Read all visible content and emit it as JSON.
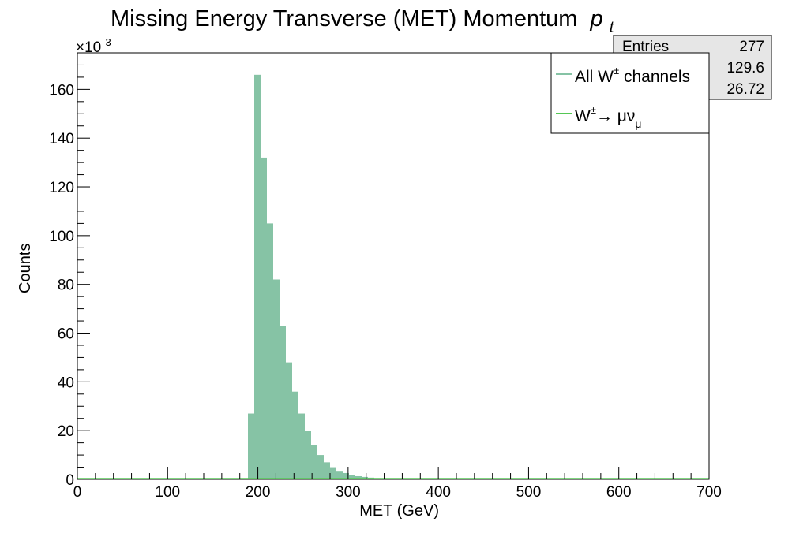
{
  "chart_data": {
    "type": "bar",
    "title": "Missing Energy Transverse (MET) Momentum",
    "title_symbol": "p",
    "title_subscript": "t",
    "xlabel": "MET (GeV)",
    "ylabel": "Counts",
    "xlim": [
      0,
      700
    ],
    "ylim": [
      0,
      175
    ],
    "y_multiplier": "×10",
    "y_multiplier_exp": "3",
    "x_ticks": [
      0,
      100,
      200,
      300,
      400,
      500,
      600,
      700
    ],
    "y_ticks": [
      0,
      20,
      40,
      60,
      80,
      100,
      120,
      140,
      160
    ],
    "bin_width": 7,
    "bins": [
      {
        "x0": 189,
        "y": 27
      },
      {
        "x0": 196,
        "y": 166
      },
      {
        "x0": 203,
        "y": 132
      },
      {
        "x0": 210,
        "y": 105
      },
      {
        "x0": 217,
        "y": 82
      },
      {
        "x0": 224,
        "y": 63
      },
      {
        "x0": 231,
        "y": 48
      },
      {
        "x0": 238,
        "y": 36
      },
      {
        "x0": 245,
        "y": 27
      },
      {
        "x0": 252,
        "y": 20
      },
      {
        "x0": 259,
        "y": 14
      },
      {
        "x0": 266,
        "y": 10
      },
      {
        "x0": 273,
        "y": 7
      },
      {
        "x0": 280,
        "y": 5
      },
      {
        "x0": 287,
        "y": 3.5
      },
      {
        "x0": 294,
        "y": 2.6
      },
      {
        "x0": 301,
        "y": 1.8
      },
      {
        "x0": 308,
        "y": 1.3
      },
      {
        "x0": 315,
        "y": 1.0
      },
      {
        "x0": 322,
        "y": 0.7
      },
      {
        "x0": 329,
        "y": 0.5
      },
      {
        "x0": 336,
        "y": 0.4
      },
      {
        "x0": 343,
        "y": 0.3
      },
      {
        "x0": 350,
        "y": 0.25
      },
      {
        "x0": 357,
        "y": 0.2
      },
      {
        "x0": 364,
        "y": 0.15
      },
      {
        "x0": 371,
        "y": 0.12
      },
      {
        "x0": 378,
        "y": 0.1
      },
      {
        "x0": 385,
        "y": 0.08
      },
      {
        "x0": 392,
        "y": 0.06
      }
    ],
    "series": [
      {
        "name": "All W± channels",
        "color": "#86c3a5"
      },
      {
        "name": "W±→ μν_μ",
        "color": "#55c755"
      }
    ],
    "legend_position": "top-right",
    "grid": false
  },
  "stats": {
    "rows": [
      {
        "label": "Entries",
        "value": "277"
      },
      {
        "label": "",
        "value": "129.6"
      },
      {
        "label": "",
        "value": "26.72"
      }
    ]
  },
  "legend": {
    "items": [
      {
        "base": "All W",
        "sup": "±",
        "rest": " channels"
      },
      {
        "base": "W",
        "sup": "±",
        "rest": "→ μν",
        "sub": "μ"
      }
    ]
  }
}
